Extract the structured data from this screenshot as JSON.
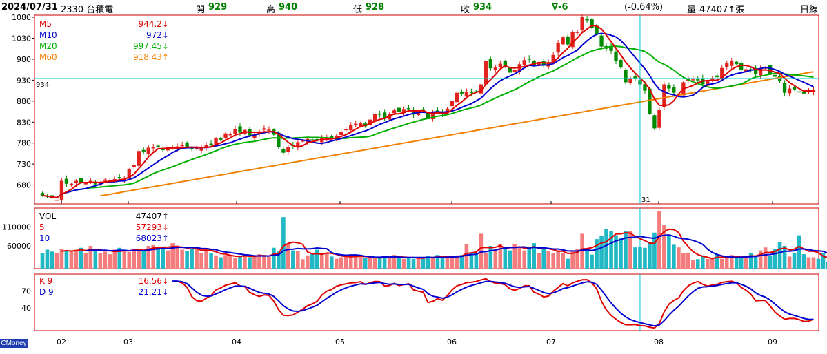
{
  "header": {
    "date": "2024/07/31",
    "symbol": "2330 台積電",
    "open_label": "開",
    "open": "929",
    "high_label": "高",
    "high": "940",
    "low_label": "低",
    "low": "928",
    "close_label": "收",
    "close": "934",
    "change": "∇-6",
    "change_pct": "(-0.64%)",
    "volume_label": "量",
    "volume": "47407↑張",
    "period": "日線"
  },
  "brand": "CMoney",
  "colors": {
    "up": "#e0231c",
    "down": "#008a00",
    "ma5": "#e00000",
    "ma10": "#0000d0",
    "ma20": "#00b000",
    "ma60": "#f08000",
    "vol_up": "#f47c7c",
    "vol_down": "#1fb8c4",
    "cursor": "#00c8d0",
    "frame": "#cc0000"
  },
  "chart_data": [
    {
      "type": "candlestick",
      "title": "",
      "ylim": [
        635,
        1085
      ],
      "y_ticks": [
        "1080",
        "1030",
        "980",
        "930",
        "880",
        "830",
        "780",
        "730",
        "680"
      ],
      "price_marker": "934",
      "legend": [
        {
          "name": "M5",
          "value": "944.2↓",
          "color": "#e00000"
        },
        {
          "name": "M10",
          "value": "972↓",
          "color": "#0000d0"
        },
        {
          "name": "M20",
          "value": "997.45↓",
          "color": "#00b000"
        },
        {
          "name": "M60",
          "value": "918.43↑",
          "color": "#f08000"
        }
      ],
      "x_labels": [
        "02",
        "03",
        "04",
        "05",
        "06",
        "07",
        "08",
        "09"
      ],
      "cursor_label": "31",
      "closes": [
        655,
        652,
        648,
        645,
        690,
        683,
        683,
        690,
        684,
        687,
        690,
        682,
        686,
        693,
        692,
        694,
        697,
        694,
        717,
        728,
        761,
        760,
        769,
        770,
        773,
        763,
        765,
        770,
        772,
        775,
        770,
        765,
        768,
        770,
        775,
        778,
        791,
        788,
        803,
        801,
        814,
        805,
        811,
        798,
        802,
        808,
        815,
        812,
        800,
        770,
        757,
        770,
        773,
        782,
        786,
        790,
        786,
        787,
        792,
        792,
        792,
        798,
        806,
        813,
        823,
        826,
        828,
        820,
        836,
        850,
        848,
        840,
        850,
        858,
        854,
        861,
        863,
        848,
        857,
        857,
        837,
        853,
        857,
        850,
        862,
        880,
        900,
        898,
        903,
        900,
        903,
        920,
        975,
        958,
        960,
        969,
        962,
        948,
        955,
        968,
        978,
        980,
        964,
        970,
        966,
        973,
        990,
        1018,
        1032,
        1015,
        1045,
        1045,
        1080,
        1075,
        1055,
        1040,
        1010,
        1005,
        1000,
        976,
        960,
        925,
        935,
        935,
        920,
        905,
        850,
        815,
        860,
        920,
        910,
        900,
        895,
        925,
        935,
        932,
        930,
        920,
        928,
        935,
        937,
        959,
        970,
        975,
        968,
        955,
        956,
        954,
        945,
        958,
        960,
        945,
        938,
        929,
        900,
        910,
        908,
        903,
        898,
        905,
        906
      ]
    },
    {
      "type": "bar",
      "title": "",
      "y_ticks": [
        "110000",
        "60000"
      ],
      "legend": [
        {
          "name": "VOL",
          "value": "47407↑",
          "color": "#000000"
        },
        {
          "name": "5",
          "value": "57293↓",
          "color": "#e00000"
        },
        {
          "name": "10",
          "value": "68023↑",
          "color": "#0000d0"
        }
      ],
      "values": [
        40000,
        50000,
        45000,
        42000,
        52000,
        48000,
        45000,
        50000,
        55000,
        40000,
        60000,
        50000,
        42000,
        45000,
        38000,
        50000,
        55000,
        48000,
        44000,
        50000,
        52000,
        48000,
        60000,
        62000,
        55000,
        58000,
        48000,
        67000,
        61000,
        50000,
        46000,
        52000,
        55000,
        40000,
        52000,
        40000,
        35000,
        30000,
        36000,
        35000,
        28000,
        33000,
        37000,
        30000,
        34000,
        38000,
        33000,
        31000,
        55000,
        45000,
        136000,
        65000,
        48000,
        47000,
        25000,
        35000,
        40000,
        50000,
        40000,
        40000,
        32000,
        26000,
        30000,
        34000,
        34000,
        36000,
        28000,
        28000,
        28000,
        28000,
        30000,
        34000,
        28000,
        36000,
        28000,
        26000,
        30000,
        26000,
        30000,
        26000,
        34000,
        30000,
        36000,
        30000,
        33000,
        32000,
        34000,
        36000,
        64000,
        42000,
        42000,
        92000,
        40000,
        60000,
        48000,
        65000,
        55000,
        48000,
        64000,
        55000,
        48000,
        55000,
        67000,
        40000,
        55000,
        47000,
        40000,
        48000,
        40000,
        26000,
        48000,
        52000,
        92000,
        47000,
        37000,
        78000,
        86000,
        105000,
        99000,
        88000,
        81000,
        100000,
        100000,
        56000,
        58000,
        55000,
        68000,
        95000,
        152000,
        115000,
        90000,
        63000,
        56000,
        40000,
        42000,
        22000,
        25000,
        35000,
        26000,
        26000,
        38000,
        26000,
        32000,
        36000,
        28000,
        30000,
        32000,
        42000,
        34000,
        48000,
        56000,
        34000,
        52000,
        70000,
        60000,
        32000,
        42000,
        88000,
        38000,
        30000,
        30000,
        26000,
        40000,
        18000
      ]
    },
    {
      "type": "line",
      "title": "",
      "y_ticks": [
        "70",
        "40"
      ],
      "legend": [
        {
          "name": "K 9",
          "value": "16.56↓",
          "color": "#e00000"
        },
        {
          "name": "D 9",
          "value": "21.21↓",
          "color": "#0000d0"
        }
      ]
    }
  ]
}
